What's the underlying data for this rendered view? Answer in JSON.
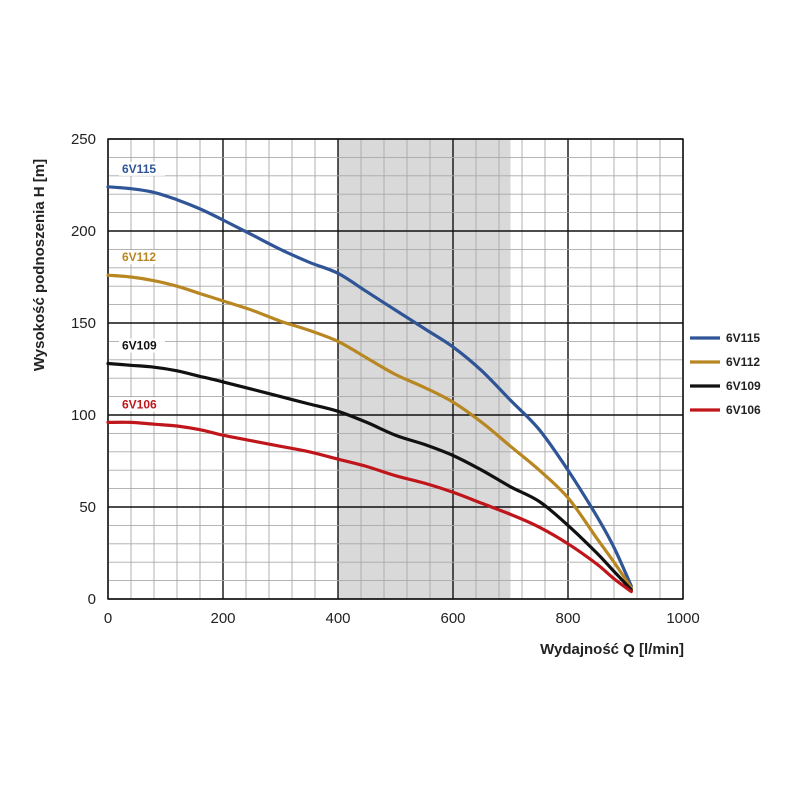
{
  "chart_data": {
    "type": "line",
    "xlabel": "Wydajność Q [l/min]",
    "ylabel": "Wysokość podnoszenia H [m]",
    "xlim": [
      0,
      1000
    ],
    "ylim": [
      0,
      250
    ],
    "x_ticks": [
      "0",
      "200",
      "400",
      "600",
      "800",
      "1000"
    ],
    "y_ticks": [
      "0",
      "50",
      "100",
      "150",
      "200",
      "250"
    ],
    "x_minor_step": 40,
    "y_minor_step": 10,
    "x_major_step": 200,
    "y_major_step": 50,
    "grid": true,
    "highlight_band": [
      400,
      700
    ],
    "legend_position": "right",
    "series": [
      {
        "name": "6V115",
        "color": "#2f5597",
        "x": [
          0,
          40,
          80,
          120,
          160,
          200,
          250,
          300,
          350,
          400,
          450,
          500,
          550,
          600,
          650,
          700,
          750,
          800,
          850,
          880,
          910
        ],
        "y": [
          224,
          223,
          221,
          217,
          212,
          206,
          198,
          190,
          183,
          177,
          167,
          157,
          147,
          137,
          124,
          108,
          92,
          70,
          45,
          28,
          7
        ]
      },
      {
        "name": "6V112",
        "color": "#b98722",
        "x": [
          0,
          40,
          80,
          120,
          160,
          200,
          250,
          300,
          350,
          400,
          450,
          500,
          550,
          600,
          650,
          700,
          750,
          800,
          850,
          880,
          910
        ],
        "y": [
          176,
          175,
          173,
          170,
          166,
          162,
          157,
          151,
          146,
          140,
          131,
          122,
          115,
          107,
          96,
          83,
          70,
          55,
          33,
          20,
          6
        ]
      },
      {
        "name": "6V109",
        "color": "#111111",
        "x": [
          0,
          40,
          80,
          120,
          160,
          200,
          250,
          300,
          350,
          400,
          450,
          500,
          550,
          600,
          650,
          700,
          750,
          800,
          850,
          880,
          910
        ],
        "y": [
          128,
          127,
          126,
          124,
          121,
          118,
          114,
          110,
          106,
          102,
          96,
          89,
          84,
          78,
          70,
          61,
          53,
          40,
          25,
          15,
          5
        ]
      },
      {
        "name": "6V106",
        "color": "#c0161b",
        "x": [
          0,
          40,
          80,
          120,
          160,
          200,
          250,
          300,
          350,
          400,
          450,
          500,
          550,
          600,
          650,
          700,
          750,
          800,
          850,
          880,
          910
        ],
        "y": [
          96,
          96,
          95,
          94,
          92,
          89,
          86,
          83,
          80,
          76,
          72,
          67,
          63,
          58,
          52,
          46,
          39,
          30,
          19,
          11,
          4
        ]
      }
    ],
    "inline_labels": [
      "6V115",
      "6V112",
      "6V109",
      "6V106"
    ]
  }
}
